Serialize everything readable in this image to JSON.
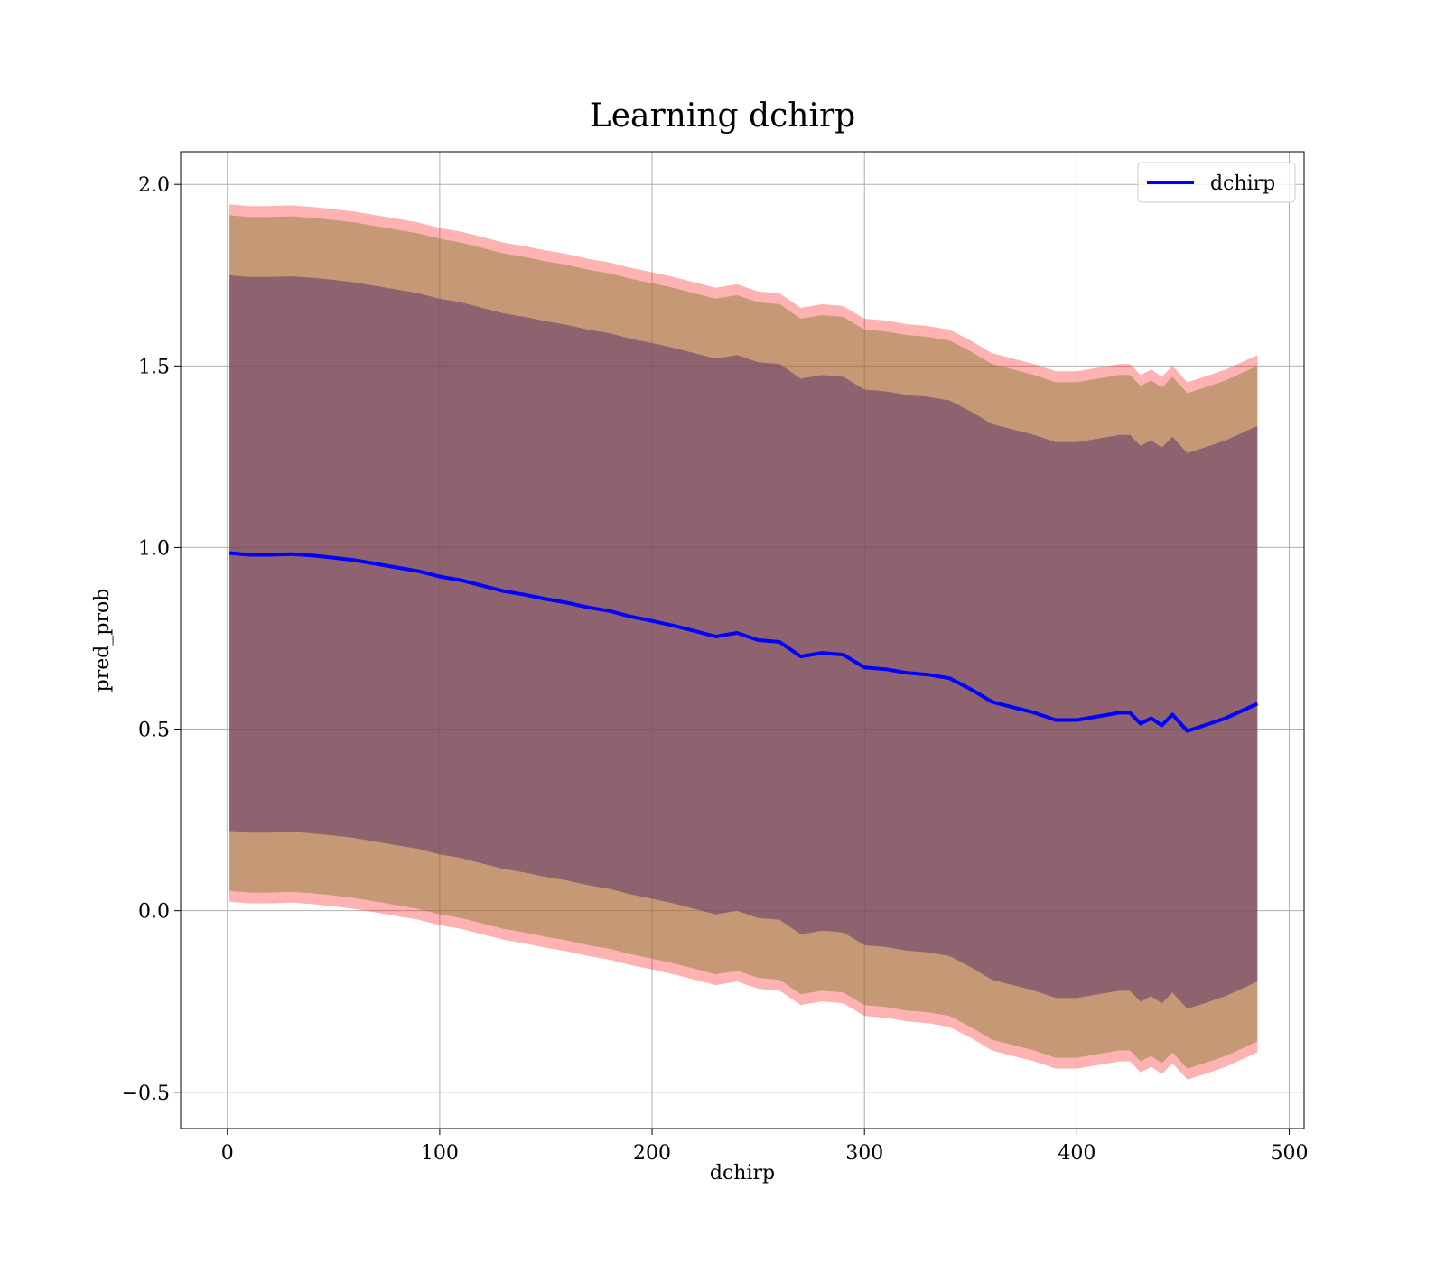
{
  "chart_data": {
    "type": "line",
    "title": "Learning dchirp",
    "xlabel": "dchirp",
    "ylabel": "pred_prob",
    "xlim": [
      -22,
      507
    ],
    "ylim": [
      -0.6,
      2.09
    ],
    "xticks": [
      0,
      100,
      200,
      300,
      400,
      500
    ],
    "xtick_labels": [
      "0",
      "100",
      "200",
      "300",
      "400",
      "500"
    ],
    "yticks": [
      -0.5,
      0.0,
      0.5,
      1.0,
      1.5,
      2.0
    ],
    "ytick_labels": [
      "−0.5",
      "0.0",
      "0.5",
      "1.0",
      "1.5",
      "2.0"
    ],
    "grid": true,
    "legend": {
      "position": "top-right",
      "entries": [
        "dchirp"
      ]
    },
    "colors": {
      "line": "#0000ff",
      "band_outer": "#ff0000",
      "band_middle": "#8c7f3a",
      "band_inner": "#6b3d6b"
    },
    "series": [
      {
        "name": "dchirp",
        "x": [
          1,
          10,
          20,
          30,
          40,
          50,
          60,
          70,
          80,
          90,
          100,
          110,
          120,
          130,
          140,
          150,
          160,
          170,
          180,
          190,
          200,
          210,
          220,
          230,
          240,
          250,
          260,
          270,
          280,
          290,
          300,
          310,
          320,
          330,
          340,
          350,
          360,
          370,
          380,
          390,
          400,
          410,
          420,
          425,
          430,
          435,
          440,
          445,
          452,
          460,
          470,
          485
        ],
        "y": [
          0.985,
          0.98,
          0.98,
          0.982,
          0.978,
          0.972,
          0.965,
          0.955,
          0.945,
          0.935,
          0.92,
          0.91,
          0.895,
          0.88,
          0.87,
          0.858,
          0.848,
          0.835,
          0.825,
          0.81,
          0.798,
          0.785,
          0.77,
          0.755,
          0.765,
          0.745,
          0.74,
          0.7,
          0.71,
          0.705,
          0.67,
          0.665,
          0.655,
          0.65,
          0.64,
          0.61,
          0.575,
          0.56,
          0.545,
          0.525,
          0.525,
          0.535,
          0.545,
          0.545,
          0.515,
          0.53,
          0.51,
          0.54,
          0.495,
          0.51,
          0.53,
          0.57
        ]
      }
    ],
    "bands": [
      {
        "level": "outer",
        "half_width": 0.96
      },
      {
        "level": "middle",
        "half_width": 0.93
      },
      {
        "level": "inner",
        "half_width": 0.765
      }
    ]
  }
}
